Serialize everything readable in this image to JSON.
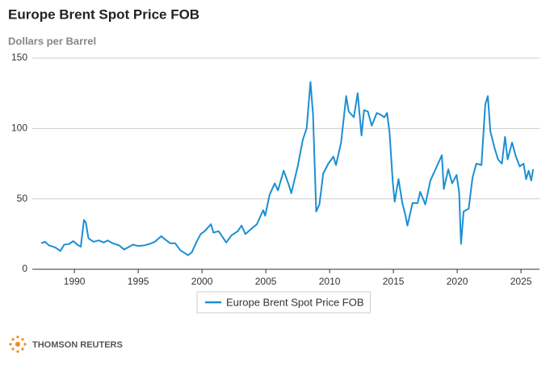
{
  "chart_data": {
    "type": "line",
    "title": "Europe Brent Spot Price FOB",
    "subtitle": "Dollars per Barrel",
    "footer": "THOMSON REUTERS",
    "xlim": [
      1986.7,
      2026.45
    ],
    "xticks": [
      1990,
      1995,
      2000,
      2005,
      2010,
      2015,
      2020,
      2025
    ],
    "ylim": [
      0,
      150
    ],
    "yticks": [
      0,
      50,
      100,
      150
    ],
    "grid": true,
    "legend": "bottom",
    "series": [
      {
        "name": "Europe Brent Spot Price FOB",
        "color": "#1b8fd2",
        "x": [
          1987.4,
          1987.7,
          1988.0,
          1988.5,
          1988.9,
          1989.2,
          1989.6,
          1989.9,
          1990.3,
          1990.5,
          1990.75,
          1990.9,
          1991.1,
          1991.5,
          1991.9,
          1992.3,
          1992.6,
          1993.0,
          1993.5,
          1993.9,
          1994.3,
          1994.6,
          1995.0,
          1995.5,
          1995.9,
          1996.3,
          1996.8,
          1997.0,
          1997.5,
          1997.9,
          1998.3,
          1998.9,
          1999.2,
          1999.6,
          1999.9,
          2000.2,
          2000.7,
          2000.9,
          2001.3,
          2001.9,
          2002.3,
          2002.8,
          2003.1,
          2003.4,
          2003.9,
          2004.3,
          2004.8,
          2004.95,
          2005.3,
          2005.7,
          2005.95,
          2006.4,
          2006.8,
          2007.0,
          2007.5,
          2007.9,
          2008.2,
          2008.5,
          2008.7,
          2008.95,
          2009.2,
          2009.5,
          2009.9,
          2010.3,
          2010.5,
          2010.9,
          2011.3,
          2011.5,
          2011.9,
          2012.2,
          2012.5,
          2012.7,
          2013.0,
          2013.3,
          2013.7,
          2013.95,
          2014.3,
          2014.5,
          2014.7,
          2014.95,
          2015.1,
          2015.4,
          2015.7,
          2015.95,
          2016.1,
          2016.5,
          2016.9,
          2017.1,
          2017.5,
          2017.9,
          2018.3,
          2018.8,
          2018.95,
          2019.3,
          2019.6,
          2019.95,
          2020.15,
          2020.3,
          2020.5,
          2020.9,
          2021.2,
          2021.5,
          2021.9,
          2022.2,
          2022.4,
          2022.6,
          2022.9,
          2023.2,
          2023.5,
          2023.75,
          2023.95,
          2024.3,
          2024.6,
          2024.9,
          2025.2,
          2025.4,
          2025.6,
          2025.8,
          2025.95
        ],
        "values": [
          18.5,
          19.5,
          17,
          15.5,
          13,
          17.5,
          18,
          20,
          17,
          16,
          35,
          33,
          22,
          19.5,
          20.5,
          19,
          20.5,
          18.5,
          17,
          14,
          16,
          17.5,
          16.5,
          17,
          18,
          19.5,
          23.5,
          22,
          18.5,
          18.5,
          13.5,
          10,
          12,
          20,
          25,
          27,
          32,
          26,
          27,
          19,
          24,
          27,
          31,
          25,
          29,
          32,
          42,
          38,
          53,
          61,
          56,
          70,
          60,
          54,
          73,
          92,
          100,
          133,
          110,
          41,
          46,
          68,
          75,
          80,
          74,
          90,
          123,
          112,
          108,
          125,
          95,
          113,
          112,
          102,
          111,
          110,
          108,
          111,
          97,
          62,
          48,
          64,
          47,
          38,
          31,
          47,
          47,
          55,
          46,
          63,
          71,
          81,
          57,
          71,
          61,
          67,
          55,
          18,
          41,
          43,
          65,
          75,
          74,
          117,
          123,
          98,
          87,
          78,
          75,
          94,
          78,
          90,
          80,
          73,
          75,
          64,
          70,
          63,
          71
        ]
      }
    ]
  }
}
